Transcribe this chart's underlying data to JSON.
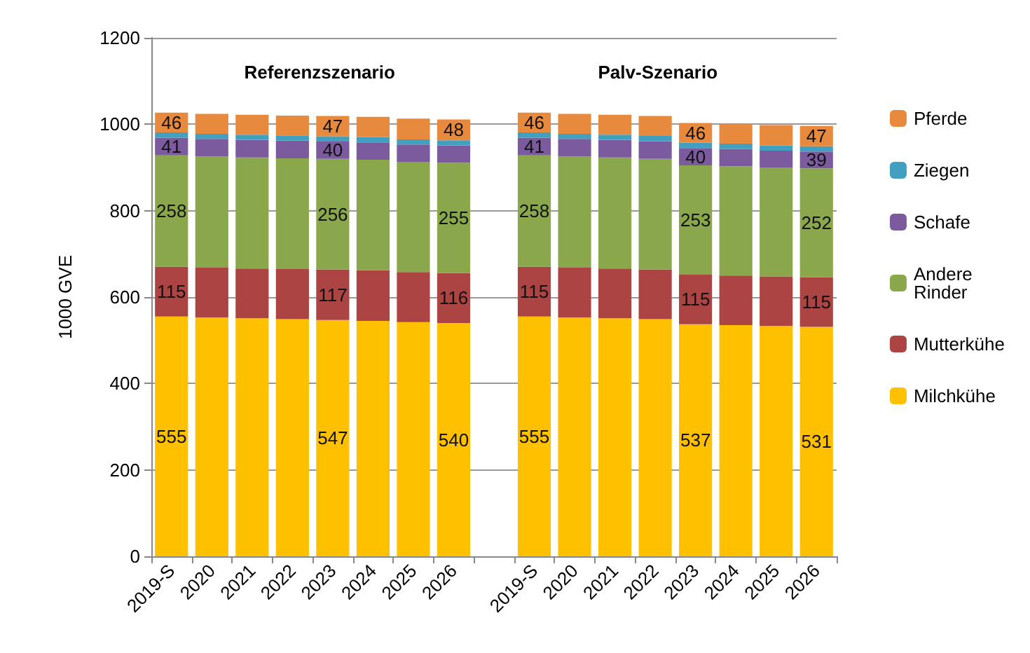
{
  "chart_data": {
    "type": "bar",
    "stacked": true,
    "ylabel": "1000 GVE",
    "ylim": [
      0,
      1200
    ],
    "yticks": [
      0,
      200,
      400,
      600,
      800,
      1000,
      1200
    ],
    "grid": "y",
    "legend": "right",
    "annotations": [
      "Referenzszenario",
      "Palv-Szenario"
    ],
    "categories": [
      "2019-S",
      "2020",
      "2021",
      "2022",
      "2023",
      "2024",
      "2025",
      "2026",
      null,
      "2019-S",
      "2020",
      "2021",
      "2022",
      "2023",
      "2024",
      "2025",
      "2026"
    ],
    "series": [
      {
        "name": "Milchkühe",
        "color": "#ffc000",
        "values": [
          555,
          553,
          551,
          549,
          547,
          545,
          542,
          540,
          null,
          555,
          553,
          551,
          549,
          537,
          535,
          533,
          531
        ],
        "value_labels": [
          "555",
          null,
          null,
          null,
          "547",
          null,
          null,
          "540",
          null,
          "555",
          null,
          null,
          null,
          "537",
          null,
          null,
          "531"
        ]
      },
      {
        "name": "Mutterkühe",
        "color": "#ab4442",
        "values": [
          115,
          115,
          115,
          116,
          117,
          117,
          116,
          116,
          null,
          115,
          115,
          115,
          115,
          115,
          115,
          115,
          115
        ],
        "value_labels": [
          "115",
          null,
          null,
          null,
          "117",
          null,
          null,
          "116",
          null,
          "115",
          null,
          null,
          null,
          "115",
          null,
          null,
          "115"
        ]
      },
      {
        "name": "Andere Rinder",
        "color": "#8aa84b",
        "values": [
          258,
          257,
          257,
          256,
          256,
          256,
          255,
          255,
          null,
          258,
          257,
          257,
          256,
          253,
          253,
          252,
          252
        ],
        "value_labels": [
          "258",
          null,
          null,
          null,
          "256",
          null,
          null,
          "255",
          null,
          "258",
          null,
          null,
          null,
          "253",
          null,
          null,
          "252"
        ]
      },
      {
        "name": "Schafe",
        "color": "#7b5a9e",
        "values": [
          41,
          41,
          41,
          41,
          40,
          40,
          40,
          40,
          null,
          41,
          41,
          41,
          41,
          40,
          40,
          39,
          39
        ],
        "value_labels": [
          "41",
          null,
          null,
          null,
          "40",
          null,
          null,
          null,
          null,
          "41",
          null,
          null,
          null,
          "40",
          null,
          null,
          "39"
        ]
      },
      {
        "name": "Ziegen",
        "color": "#41a0c0",
        "values": [
          12,
          12,
          12,
          12,
          12,
          12,
          12,
          12,
          null,
          12,
          12,
          12,
          12,
          12,
          12,
          12,
          12
        ]
      },
      {
        "name": "Pferde",
        "color": "#e88a3e",
        "values": [
          46,
          46,
          46,
          46,
          47,
          47,
          48,
          48,
          null,
          46,
          46,
          46,
          46,
          46,
          46,
          47,
          47
        ],
        "value_labels": [
          "46",
          null,
          null,
          null,
          "47",
          null,
          null,
          "48",
          null,
          "46",
          null,
          null,
          null,
          "46",
          null,
          null,
          "47"
        ]
      }
    ]
  }
}
